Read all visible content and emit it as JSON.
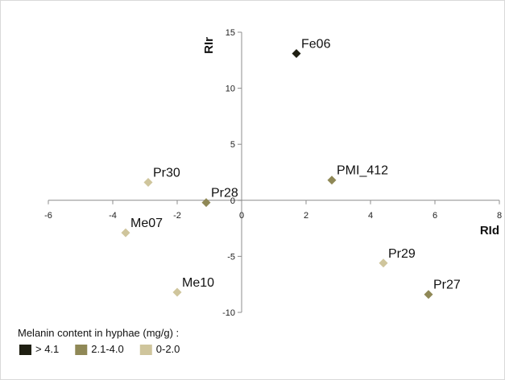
{
  "chart_data": {
    "type": "scatter",
    "xlabel": "RId",
    "ylabel": "RIr",
    "xlim": [
      -6,
      8
    ],
    "ylim": [
      -10,
      15
    ],
    "x_ticks": [
      "-6",
      "-4",
      "-2",
      "0",
      "2",
      "4",
      "6",
      "8"
    ],
    "y_ticks": [
      "-10",
      "-5",
      "0",
      "5",
      "10",
      "15"
    ],
    "points": [
      {
        "label": "Fe06",
        "x": 1.7,
        "y": 13.1,
        "group": 0
      },
      {
        "label": "PMI_412",
        "x": 2.8,
        "y": 1.8,
        "group": 1
      },
      {
        "label": "Pr30",
        "x": -2.9,
        "y": 1.6,
        "group": 2
      },
      {
        "label": "Pr28",
        "x": -1.1,
        "y": -0.2,
        "group": 1
      },
      {
        "label": "Me07",
        "x": -3.6,
        "y": -2.9,
        "group": 2
      },
      {
        "label": "Me10",
        "x": -2.0,
        "y": -8.2,
        "group": 2
      },
      {
        "label": "Pr29",
        "x": 4.4,
        "y": -5.6,
        "group": 2
      },
      {
        "label": "Pr27",
        "x": 5.8,
        "y": -8.4,
        "group": 1
      }
    ],
    "legend": {
      "title": "Melanin content in hyphae (mg/g) :",
      "position": "bottom-left",
      "entries": [
        {
          "label": "> 4.1",
          "color": "#1f1f12"
        },
        {
          "label": "2.1-4.0",
          "color": "#8f8856"
        },
        {
          "label": "0-2.0",
          "color": "#cfc59c"
        }
      ]
    },
    "grid": false
  }
}
